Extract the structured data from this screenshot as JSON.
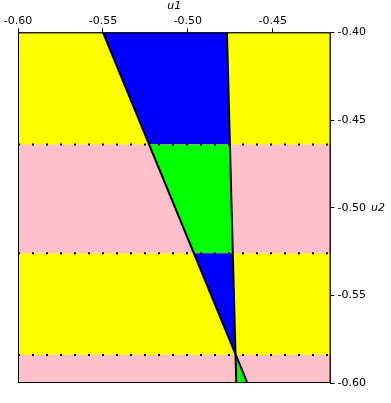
{
  "chart_data": {
    "type": "region",
    "x_label": "u1",
    "y_label": "u2",
    "xlim": [
      -0.6,
      -0.416
    ],
    "ylim": [
      -0.6,
      -0.4
    ],
    "xticks": [
      {
        "value": -0.6,
        "label": "-0.60"
      },
      {
        "value": -0.55,
        "label": "-0.55"
      },
      {
        "value": -0.5,
        "label": "-0.50"
      },
      {
        "value": -0.45,
        "label": "-0.45"
      }
    ],
    "yticks": [
      {
        "value": -0.4,
        "label": "-0.40"
      },
      {
        "value": -0.45,
        "label": "-0.45"
      },
      {
        "value": -0.5,
        "label": "-0.50"
      },
      {
        "value": -0.55,
        "label": "-0.55"
      },
      {
        "value": -0.6,
        "label": "-0.60"
      }
    ],
    "lines": [
      {
        "points": [
          [
            -0.55,
            -0.4
          ],
          [
            -0.465,
            -0.6
          ]
        ],
        "color": "#000000"
      },
      {
        "points": [
          [
            -0.477,
            -0.4
          ],
          [
            -0.4715,
            -0.6
          ]
        ],
        "color": "#000000"
      }
    ],
    "bands": [
      {
        "range": [
          -0.4,
          -0.464
        ],
        "color": "#ffff00",
        "inner_color": "#0000ff"
      },
      {
        "range": [
          -0.464,
          -0.526
        ],
        "color": "#ffc0cb",
        "inner_color": "#00ff00"
      },
      {
        "range": [
          -0.526,
          -0.584
        ],
        "color": "#ffff00",
        "inner_color": "#0000ff"
      },
      {
        "range": [
          -0.584,
          -0.6
        ],
        "color": "#ffc0cb",
        "inner_color": "#00ff00"
      }
    ],
    "line_style": "dotted"
  }
}
